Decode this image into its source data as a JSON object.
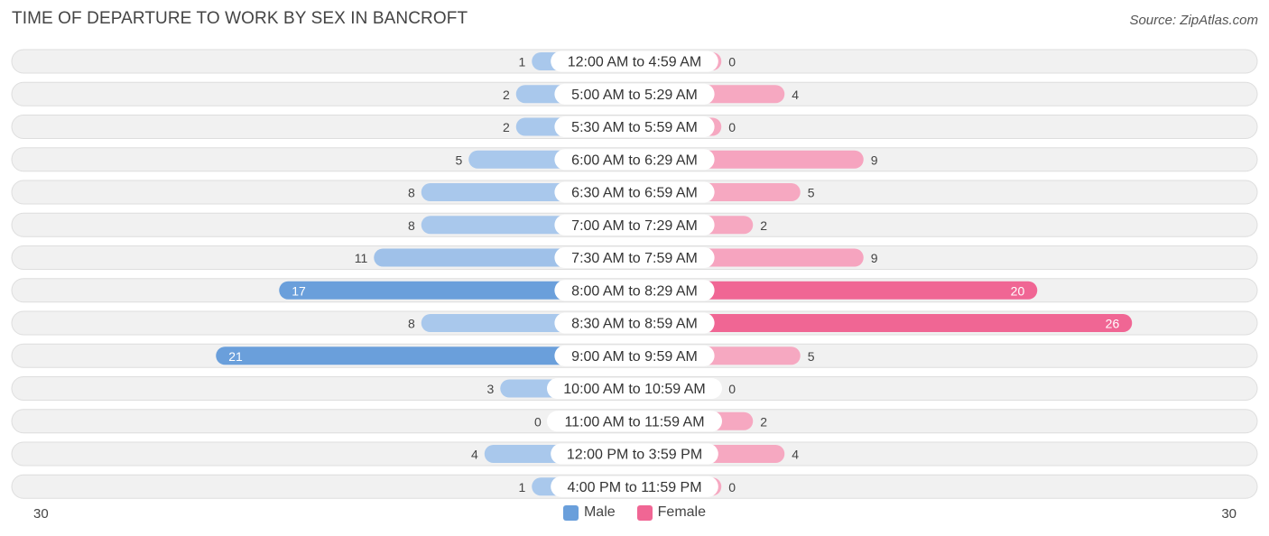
{
  "header": {
    "title": "TIME OF DEPARTURE TO WORK BY SEX IN BANCROFT",
    "source": "Source: ZipAtlas.com"
  },
  "legend": {
    "male_label": "Male",
    "female_label": "Female"
  },
  "axis": {
    "left_label": "30",
    "right_label": "30"
  },
  "colors": {
    "male_light": "#a9c8ec",
    "male_dark": "#6a9fdb",
    "female_light": "#f6a8c1",
    "female_dark": "#f06694",
    "row_bg": "#f1f1f1",
    "row_border": "#dedede"
  },
  "chart_data": {
    "type": "bar",
    "orientation": "horizontal-diverging",
    "xlim": [
      -30,
      30
    ],
    "categories": [
      "12:00 AM to 4:59 AM",
      "5:00 AM to 5:29 AM",
      "5:30 AM to 5:59 AM",
      "6:00 AM to 6:29 AM",
      "6:30 AM to 6:59 AM",
      "7:00 AM to 7:29 AM",
      "7:30 AM to 7:59 AM",
      "8:00 AM to 8:29 AM",
      "8:30 AM to 8:59 AM",
      "9:00 AM to 9:59 AM",
      "10:00 AM to 10:59 AM",
      "11:00 AM to 11:59 AM",
      "12:00 PM to 3:59 PM",
      "4:00 PM to 11:59 PM"
    ],
    "series": [
      {
        "name": "Male",
        "values": [
          1,
          2,
          2,
          5,
          8,
          8,
          11,
          17,
          8,
          21,
          3,
          0,
          4,
          1
        ]
      },
      {
        "name": "Female",
        "values": [
          0,
          4,
          0,
          9,
          5,
          2,
          9,
          20,
          26,
          5,
          0,
          2,
          4,
          0
        ]
      }
    ],
    "legend_position": "bottom-center"
  }
}
